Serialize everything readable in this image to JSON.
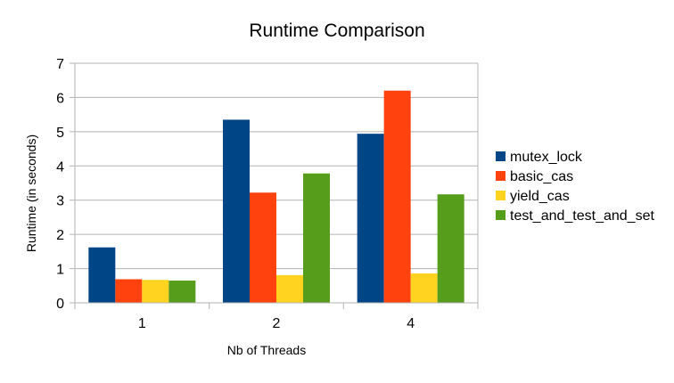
{
  "chart_data": {
    "type": "bar",
    "title": "Runtime Comparison",
    "xlabel": "Nb of Threads",
    "ylabel": "Runtime (in seconds)",
    "categories": [
      "1",
      "2",
      "4"
    ],
    "ylim": [
      0,
      7
    ],
    "yticks": [
      0,
      1,
      2,
      3,
      4,
      5,
      6,
      7
    ],
    "grid": true,
    "legend_position": "right",
    "series": [
      {
        "name": "mutex_lock",
        "color": "#004586",
        "values": [
          1.62,
          5.35,
          4.94
        ]
      },
      {
        "name": "basic_cas",
        "color": "#ff420e",
        "values": [
          0.69,
          3.22,
          6.2
        ]
      },
      {
        "name": "yield_cas",
        "color": "#ffd320",
        "values": [
          0.67,
          0.81,
          0.86
        ]
      },
      {
        "name": "test_and_test_and_set",
        "color": "#579d1c",
        "values": [
          0.65,
          3.78,
          3.17
        ]
      }
    ]
  }
}
